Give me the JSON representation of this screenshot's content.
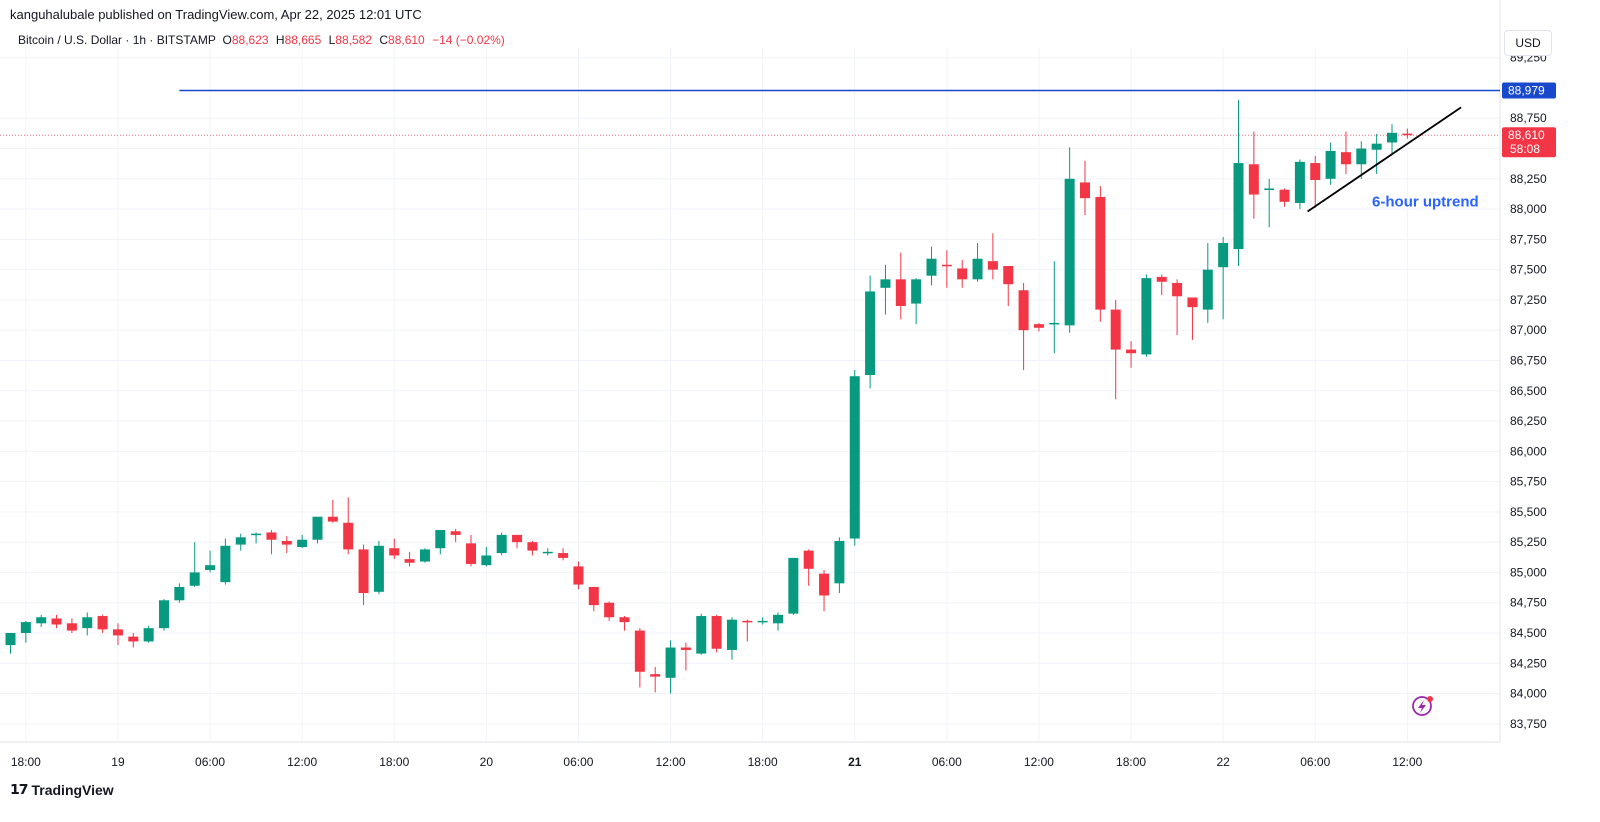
{
  "header": {
    "published_line": "kanguhalubale published on TradingView.com, Apr 22, 2025 12:01 UTC",
    "symbol_line": "Bitcoin / U.S. Dollar · 1h · BITSTAMP",
    "ohlc": {
      "o_label": "O",
      "o_value": "88,623",
      "h_label": "H",
      "h_value": "88,665",
      "l_label": "L",
      "l_value": "88,582",
      "c_label": "C",
      "c_value": "88,610",
      "change": "−14 (−0.02%)"
    },
    "currency_button": "USD"
  },
  "footer": {
    "brand": "TradingView",
    "logo_icon": "tradingview-logo-icon"
  },
  "colors": {
    "up": "#089981",
    "down": "#f23645",
    "resistance": "#1848cc",
    "trendline": "#000000",
    "annotation": "#2962ff"
  },
  "chart_data": {
    "type": "candlestick",
    "title": "",
    "y_axis": {
      "ticks": [
        83750,
        84000,
        84250,
        84500,
        84750,
        85000,
        85250,
        85500,
        85750,
        86000,
        86250,
        86500,
        86750,
        87000,
        87250,
        87500,
        87750,
        88000,
        88250,
        88500,
        88750,
        89250
      ],
      "ylim": [
        83600,
        89330
      ]
    },
    "x_axis": {
      "labels": [
        "18:00",
        "19",
        "06:00",
        "12:00",
        "18:00",
        "20",
        "06:00",
        "12:00",
        "18:00",
        "21",
        "06:00",
        "12:00",
        "18:00",
        "22",
        "06:00",
        "12:00"
      ],
      "label_index": [
        1,
        7,
        13,
        19,
        25,
        31,
        37,
        43,
        49,
        55,
        61,
        67,
        73,
        79,
        85,
        91
      ],
      "bold_labels": [
        "21"
      ],
      "range": "Apr 18 17:00 – Apr 22 12:00 UTC (1h candles)"
    },
    "resistance_line": {
      "price": 88979,
      "label": "88,979",
      "start_index": 11
    },
    "current_price": {
      "price": 88610,
      "label": "88,610",
      "countdown": "58:08"
    },
    "trendline": {
      "from": {
        "index": 84.5,
        "price": 87980
      },
      "to": {
        "index": 94.5,
        "price": 88840
      }
    },
    "annotation": {
      "text": "6-hour uptrend",
      "index": 88.7,
      "price": 88020
    },
    "candles": [
      [
        84400,
        84500,
        84330,
        84500
      ],
      [
        84500,
        84600,
        84420,
        84590
      ],
      [
        84580,
        84650,
        84550,
        84630
      ],
      [
        84620,
        84650,
        84540,
        84570
      ],
      [
        84580,
        84620,
        84500,
        84520
      ],
      [
        84540,
        84670,
        84480,
        84630
      ],
      [
        84640,
        84650,
        84500,
        84530
      ],
      [
        84530,
        84580,
        84400,
        84480
      ],
      [
        84470,
        84500,
        84380,
        84430
      ],
      [
        84430,
        84560,
        84420,
        84540
      ],
      [
        84540,
        84780,
        84520,
        84770
      ],
      [
        84770,
        84910,
        84750,
        84880
      ],
      [
        84890,
        85250,
        84880,
        85000
      ],
      [
        85020,
        85180,
        85000,
        85060
      ],
      [
        84920,
        85280,
        84900,
        85220
      ],
      [
        85230,
        85320,
        85180,
        85290
      ],
      [
        85320,
        85330,
        85240,
        85320
      ],
      [
        85330,
        85350,
        85150,
        85270
      ],
      [
        85260,
        85300,
        85160,
        85230
      ],
      [
        85210,
        85310,
        85200,
        85270
      ],
      [
        85270,
        85440,
        85240,
        85460
      ],
      [
        85460,
        85600,
        85410,
        85420
      ],
      [
        85410,
        85620,
        85150,
        85190
      ],
      [
        85190,
        85230,
        84730,
        84830
      ],
      [
        84840,
        85260,
        84820,
        85220
      ],
      [
        85200,
        85280,
        85110,
        85140
      ],
      [
        85110,
        85170,
        85050,
        85080
      ],
      [
        85090,
        85200,
        85080,
        85190
      ],
      [
        85200,
        85340,
        85150,
        85350
      ],
      [
        85340,
        85360,
        85250,
        85310
      ],
      [
        85240,
        85310,
        85050,
        85070
      ],
      [
        85060,
        85210,
        85050,
        85140
      ],
      [
        85160,
        85330,
        85140,
        85310
      ],
      [
        85310,
        85300,
        85200,
        85250
      ],
      [
        85250,
        85260,
        85140,
        85180
      ],
      [
        85170,
        85200,
        85140,
        85170
      ],
      [
        85160,
        85200,
        85100,
        85120
      ],
      [
        85050,
        85090,
        84860,
        84900
      ],
      [
        84880,
        84870,
        84680,
        84730
      ],
      [
        84750,
        84760,
        84600,
        84630
      ],
      [
        84630,
        84640,
        84520,
        84590
      ],
      [
        84520,
        84540,
        84050,
        84180
      ],
      [
        84160,
        84220,
        84010,
        84140
      ],
      [
        84130,
        84440,
        84000,
        84380
      ],
      [
        84380,
        84420,
        84190,
        84360
      ],
      [
        84330,
        84660,
        84320,
        84640
      ],
      [
        84640,
        84650,
        84340,
        84370
      ],
      [
        84360,
        84630,
        84280,
        84610
      ],
      [
        84600,
        84610,
        84430,
        84590
      ],
      [
        84590,
        84630,
        84570,
        84600
      ],
      [
        84580,
        84670,
        84520,
        84650
      ],
      [
        84660,
        85120,
        84650,
        85120
      ],
      [
        85180,
        85190,
        84890,
        85030
      ],
      [
        84990,
        85020,
        84680,
        84810
      ],
      [
        84910,
        85290,
        84830,
        85260
      ],
      [
        85280,
        86670,
        85220,
        86620
      ],
      [
        86630,
        87450,
        86520,
        87320
      ],
      [
        87350,
        87540,
        87130,
        87420
      ],
      [
        87420,
        87640,
        87090,
        87200
      ],
      [
        87220,
        87430,
        87050,
        87420
      ],
      [
        87450,
        87690,
        87370,
        87590
      ],
      [
        87540,
        87660,
        87350,
        87530
      ],
      [
        87510,
        87580,
        87350,
        87420
      ],
      [
        87420,
        87720,
        87400,
        87590
      ],
      [
        87570,
        87800,
        87420,
        87500
      ],
      [
        87530,
        87520,
        87200,
        87380
      ],
      [
        87330,
        87390,
        86670,
        87000
      ],
      [
        87050,
        87060,
        86990,
        87020
      ],
      [
        87050,
        87570,
        86810,
        87060
      ],
      [
        87040,
        88510,
        86980,
        88250
      ],
      [
        88220,
        88400,
        87950,
        88090
      ],
      [
        88100,
        88190,
        87070,
        87170
      ],
      [
        87170,
        87250,
        86430,
        86840
      ],
      [
        86840,
        86910,
        86690,
        86810
      ],
      [
        86800,
        87460,
        86780,
        87430
      ],
      [
        87440,
        87460,
        87290,
        87400
      ],
      [
        87390,
        87420,
        86960,
        87280
      ],
      [
        87270,
        87230,
        86920,
        87190
      ],
      [
        87170,
        87720,
        87060,
        87500
      ],
      [
        87520,
        87770,
        87090,
        87720
      ],
      [
        87670,
        88900,
        87530,
        88380
      ],
      [
        88370,
        88640,
        87920,
        88120
      ],
      [
        88170,
        88250,
        87850,
        88170
      ],
      [
        88160,
        88170,
        88020,
        88060
      ],
      [
        88050,
        88410,
        88000,
        88390
      ],
      [
        88380,
        88440,
        88010,
        88240
      ],
      [
        88250,
        88550,
        88200,
        88480
      ],
      [
        88470,
        88640,
        88290,
        88370
      ],
      [
        88370,
        88560,
        88250,
        88500
      ],
      [
        88490,
        88620,
        88290,
        88540
      ],
      [
        88550,
        88700,
        88450,
        88630
      ],
      [
        88623,
        88665,
        88582,
        88610
      ]
    ]
  }
}
